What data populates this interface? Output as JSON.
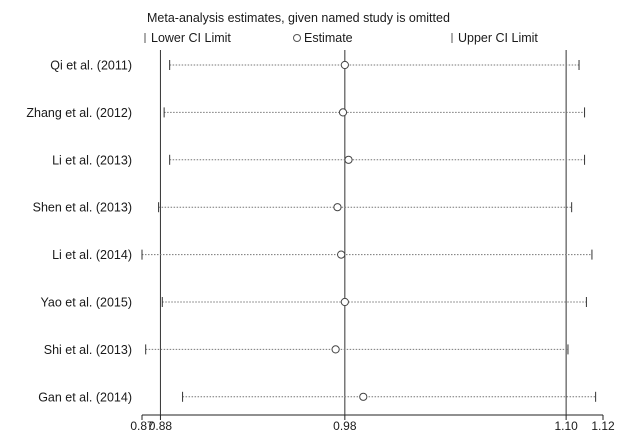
{
  "chart_data": {
    "type": "scatter",
    "title": "Meta-analysis estimates, given named study is omitted",
    "legend": {
      "placement": "top",
      "lower": "Lower CI Limit",
      "estimate": "Estimate",
      "upper": "Upper CI Limit"
    },
    "x_ticks": [
      {
        "value": 0.87,
        "label": "0.87"
      },
      {
        "value": 0.88,
        "label": "0.88"
      },
      {
        "value": 0.98,
        "label": "0.98"
      },
      {
        "value": 1.1,
        "label": "1.10"
      },
      {
        "value": 1.12,
        "label": "1.12"
      }
    ],
    "reference_lines": [
      0.88,
      0.98,
      1.1
    ],
    "xlim": [
      0.87,
      1.12
    ],
    "studies": [
      {
        "name": "Qi et al. (2011)",
        "lower": 0.885,
        "estimate": 0.98,
        "upper": 1.107
      },
      {
        "name": "Zhang et al. (2012)",
        "lower": 0.882,
        "estimate": 0.979,
        "upper": 1.11
      },
      {
        "name": "Li et al. (2013)",
        "lower": 0.885,
        "estimate": 0.982,
        "upper": 1.11
      },
      {
        "name": "Shen et al. (2013)",
        "lower": 0.879,
        "estimate": 0.976,
        "upper": 1.103
      },
      {
        "name": "Li et al. (2014)",
        "lower": 0.87,
        "estimate": 0.978,
        "upper": 1.114
      },
      {
        "name": "Yao et al. (2015)",
        "lower": 0.881,
        "estimate": 0.98,
        "upper": 1.111
      },
      {
        "name": "Shi et al. (2013)",
        "lower": 0.872,
        "estimate": 0.975,
        "upper": 1.101
      },
      {
        "name": "Gan et al. (2014)",
        "lower": 0.892,
        "estimate": 0.99,
        "upper": 1.116
      }
    ]
  }
}
